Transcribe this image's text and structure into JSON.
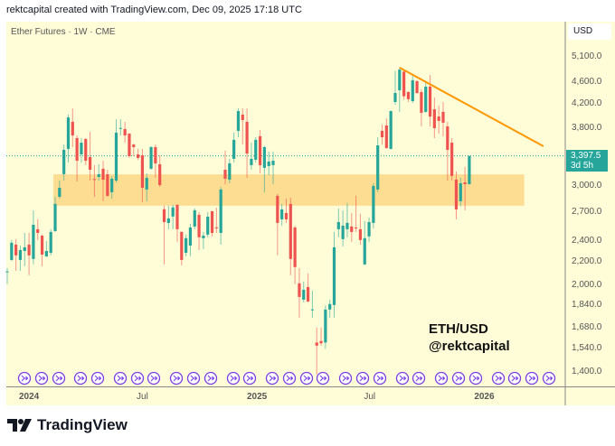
{
  "header": {
    "credit": "rektcapital created with TradingView.com, Dec 09, 2025 17:18 UTC"
  },
  "chart": {
    "symbol_line": "Ether Futures · 1W · CME",
    "currency_button": "USD",
    "watermark_line1": "ETH/USD",
    "watermark_line2": "@rektcapital"
  },
  "footer": {
    "logo_text": "TradingView",
    "logo_icon": "tradingview-logo"
  },
  "colors": {
    "up": "#26a69a",
    "down": "#ef5350",
    "zone": "#fdd98a",
    "trendline": "#ff9800",
    "background": "#fefdd8",
    "event_icon": "#7b3fe4"
  },
  "chart_data": {
    "type": "candlestick",
    "interval": "1W",
    "y_scale": "log",
    "ylim": [
      1330,
      5400
    ],
    "y_ticks": [
      "5,100.0",
      "4,600.0",
      "4,200.0",
      "3,800.0",
      "3,000.0",
      "2,700.0",
      "2,400.0",
      "2,200.0",
      "2,000.0",
      "1,840.0",
      "1,680.0",
      "1,540.0",
      "1,400.0"
    ],
    "x_ticks": [
      {
        "label": "2024",
        "date": "2024-01-01",
        "bold": true
      },
      {
        "label": "Jul",
        "date": "2024-07-01",
        "bold": false
      },
      {
        "label": "2025",
        "date": "2025-01-01",
        "bold": true
      },
      {
        "label": "Jul",
        "date": "2025-07-01",
        "bold": false
      },
      {
        "label": "2026",
        "date": "2026-01-01",
        "bold": true
      }
    ],
    "last_price": {
      "value": "3,397.5",
      "countdown": "3d 5h"
    },
    "support_zone": {
      "low": 2770,
      "high": 3150,
      "from": "2024-02-12",
      "to": "2026-03-09"
    },
    "trendline": {
      "from": {
        "date": "2025-08-18",
        "price": 4880
      },
      "to": {
        "date": "2026-04-06",
        "price": 3535
      }
    },
    "event_icon": "arrow-circle-icon",
    "candles_ohlc": [
      [
        "2023-11-27",
        2110,
        2145,
        2007,
        2115
      ],
      [
        "2023-12-04",
        2217,
        2406,
        2209,
        2379
      ],
      [
        "2023-12-11",
        2361,
        2415,
        2121,
        2259
      ],
      [
        "2023-12-18",
        2217,
        2352,
        2121,
        2309
      ],
      [
        "2023-12-25",
        2301,
        2477,
        2161,
        2335
      ],
      [
        "2024-01-01",
        2361,
        2477,
        2082,
        2259
      ],
      [
        "2024-01-08",
        2226,
        2718,
        2177,
        2561
      ],
      [
        "2024-01-15",
        2515,
        2619,
        2406,
        2477
      ],
      [
        "2024-01-22",
        2449,
        2460,
        2161,
        2266
      ],
      [
        "2024-01-29",
        2250,
        2397,
        2243,
        2300
      ],
      [
        "2024-02-05",
        2283,
        2515,
        2259,
        2487
      ],
      [
        "2024-02-12",
        2496,
        2873,
        2487,
        2790
      ],
      [
        "2024-02-19",
        2873,
        3070,
        2851,
        2981
      ],
      [
        "2024-02-26",
        3152,
        3560,
        3070,
        3483
      ],
      [
        "2024-03-04",
        3496,
        4024,
        3306,
        3978
      ],
      [
        "2024-03-11",
        3907,
        4128,
        3522,
        3695
      ],
      [
        "2024-03-18",
        3655,
        3695,
        3059,
        3331
      ],
      [
        "2024-03-25",
        3418,
        3655,
        3306,
        3587
      ],
      [
        "2024-04-01",
        3642,
        3655,
        3271,
        3331
      ],
      [
        "2024-04-08",
        3381,
        3751,
        3070,
        3210
      ],
      [
        "2024-04-15",
        3090,
        3271,
        2873,
        3085
      ],
      [
        "2024-04-22",
        3117,
        3283,
        3070,
        3152
      ],
      [
        "2024-04-29",
        3223,
        3331,
        2821,
        3082
      ],
      [
        "2024-05-06",
        3152,
        3210,
        2873,
        2884
      ],
      [
        "2024-05-13",
        2927,
        3129,
        2851,
        3094
      ],
      [
        "2024-05-20",
        3070,
        3948,
        3048,
        3737
      ],
      [
        "2024-05-27",
        3800,
        3948,
        3695,
        3810
      ],
      [
        "2024-06-03",
        3793,
        3907,
        3587,
        3695
      ],
      [
        "2024-06-10",
        3723,
        3730,
        3370,
        3394
      ],
      [
        "2024-06-17",
        3560,
        3570,
        3394,
        3522
      ],
      [
        "2024-06-24",
        3418,
        3496,
        3345,
        3369
      ],
      [
        "2024-07-01",
        3406,
        3496,
        2811,
        2981
      ],
      [
        "2024-07-08",
        2960,
        3162,
        2821,
        3105
      ],
      [
        "2024-07-15",
        3223,
        3535,
        3210,
        3522
      ],
      [
        "2024-07-22",
        3522,
        3560,
        3105,
        3295
      ],
      [
        "2024-07-29",
        3283,
        3406,
        2992,
        3014
      ],
      [
        "2024-08-05",
        2730,
        2770,
        2177,
        2590
      ],
      [
        "2024-08-12",
        2580,
        2770,
        2515,
        2629
      ],
      [
        "2024-08-19",
        2650,
        2780,
        2515,
        2750
      ],
      [
        "2024-08-26",
        2780,
        2785,
        2388,
        2515
      ],
      [
        "2024-09-02",
        2487,
        2490,
        2169,
        2217
      ],
      [
        "2024-09-09",
        2283,
        2460,
        2251,
        2424
      ],
      [
        "2024-09-16",
        2352,
        2571,
        2251,
        2533
      ],
      [
        "2024-09-23",
        2543,
        2738,
        2515,
        2718
      ],
      [
        "2024-09-30",
        2668,
        2698,
        2309,
        2433
      ],
      [
        "2024-10-07",
        2424,
        2487,
        2318,
        2449
      ],
      [
        "2024-10-14",
        2460,
        2698,
        2433,
        2648
      ],
      [
        "2024-10-21",
        2708,
        2710,
        2442,
        2477
      ],
      [
        "2024-10-28",
        2533,
        2748,
        2477,
        2524
      ],
      [
        "2024-11-04",
        2477,
        2992,
        2361,
        2960
      ],
      [
        "2024-11-11",
        3210,
        3470,
        3026,
        3094
      ],
      [
        "2024-11-18",
        3082,
        3357,
        3037,
        3295
      ],
      [
        "2024-11-25",
        3357,
        3737,
        3306,
        3629
      ],
      [
        "2024-12-02",
        3765,
        4128,
        3668,
        4084
      ],
      [
        "2024-12-09",
        4024,
        4128,
        3560,
        3936
      ],
      [
        "2024-12-16",
        3907,
        4128,
        3105,
        3430
      ],
      [
        "2024-12-23",
        3271,
        3587,
        3210,
        3357
      ],
      [
        "2024-12-30",
        3345,
        3668,
        3306,
        3629
      ],
      [
        "2025-01-06",
        3682,
        3779,
        3162,
        3271
      ],
      [
        "2025-01-13",
        3235,
        3535,
        2927,
        3522
      ],
      [
        "2025-01-20",
        3259,
        3458,
        3140,
        3320
      ],
      [
        "2025-01-27",
        3271,
        3458,
        3026,
        3331
      ],
      [
        "2025-02-03",
        2884,
        2905,
        2259,
        2581
      ],
      [
        "2025-02-10",
        2619,
        2790,
        2552,
        2728
      ],
      [
        "2025-02-17",
        2688,
        2851,
        2581,
        2619
      ],
      [
        "2025-02-24",
        2790,
        2862,
        2082,
        2226
      ],
      [
        "2025-03-03",
        2533,
        2552,
        2007,
        2153
      ],
      [
        "2025-03-10",
        2014,
        2145,
        1750,
        1905
      ],
      [
        "2025-03-17",
        1884,
        2029,
        1863,
        1962
      ],
      [
        "2025-03-24",
        1984,
        2098,
        1863,
        1870
      ],
      [
        "2025-03-31",
        1805,
        1955,
        1750,
        1810
      ],
      [
        "2025-04-07",
        1580,
        1680,
        1385,
        1560
      ],
      [
        "2025-04-14",
        1590,
        1680,
        1560,
        1575
      ],
      [
        "2025-04-21",
        1580,
        1840,
        1540,
        1809
      ],
      [
        "2025-04-28",
        1809,
        1884,
        1750,
        1850
      ],
      [
        "2025-05-05",
        1843,
        2487,
        1750,
        2335
      ],
      [
        "2025-05-12",
        2515,
        2738,
        2433,
        2590
      ],
      [
        "2025-05-19",
        2415,
        2718,
        2344,
        2552
      ],
      [
        "2025-05-26",
        2515,
        2800,
        2433,
        2581
      ],
      [
        "2025-06-02",
        2543,
        2688,
        2388,
        2487
      ],
      [
        "2025-06-09",
        2533,
        2884,
        2487,
        2524
      ],
      [
        "2025-06-16",
        2515,
        2678,
        2361,
        2406
      ],
      [
        "2025-06-23",
        2177,
        2600,
        2170,
        2424
      ],
      [
        "2025-06-30",
        2442,
        2639,
        2388,
        2590
      ],
      [
        "2025-07-07",
        2581,
        3037,
        2524,
        3003
      ],
      [
        "2025-07-14",
        2960,
        3668,
        2927,
        3548
      ],
      [
        "2025-07-21",
        3765,
        3863,
        3560,
        3668
      ],
      [
        "2025-07-28",
        3849,
        3963,
        3496,
        3509
      ],
      [
        "2025-08-04",
        3496,
        4090,
        3490,
        4084
      ],
      [
        "2025-08-11",
        4238,
        4819,
        4190,
        4398
      ],
      [
        "2025-08-18",
        4448,
        4880,
        4070,
        4840
      ],
      [
        "2025-08-25",
        4800,
        4840,
        4280,
        4340
      ],
      [
        "2025-09-01",
        4414,
        4430,
        4238,
        4288
      ],
      [
        "2025-09-08",
        4254,
        4736,
        4222,
        4634
      ],
      [
        "2025-09-15",
        4617,
        4634,
        4382,
        4398
      ],
      [
        "2025-09-22",
        4414,
        4463,
        3835,
        4055
      ],
      [
        "2025-09-29",
        4070,
        4583,
        4055,
        4514
      ],
      [
        "2025-10-06",
        4514,
        4735,
        3835,
        3993
      ],
      [
        "2025-10-13",
        4114,
        4317,
        3655,
        3807
      ],
      [
        "2025-10-20",
        3993,
        4174,
        3723,
        3922
      ],
      [
        "2025-10-27",
        4070,
        4238,
        3682,
        3893
      ],
      [
        "2025-11-03",
        3835,
        3907,
        3070,
        3483
      ],
      [
        "2025-11-10",
        3587,
        3655,
        3070,
        3129
      ],
      [
        "2025-11-17",
        3082,
        3188,
        2619,
        2728
      ],
      [
        "2025-11-24",
        2821,
        3105,
        2760,
        3037
      ],
      [
        "2025-12-01",
        3048,
        3247,
        2718,
        3026
      ],
      [
        "2025-12-08",
        3026,
        3400,
        3020,
        3397.5
      ]
    ]
  }
}
